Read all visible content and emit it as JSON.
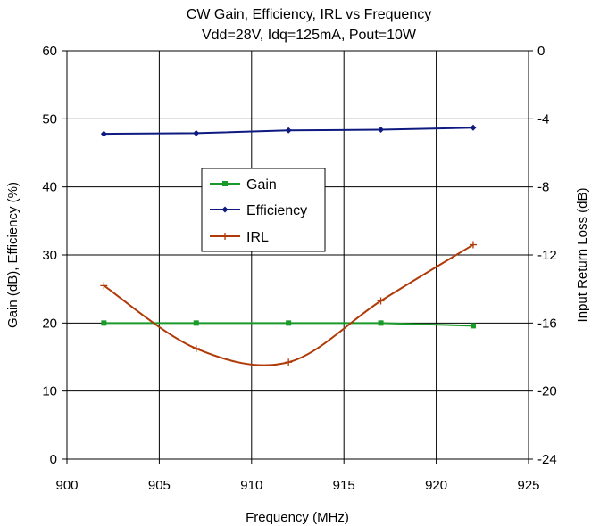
{
  "chart_data": {
    "type": "line",
    "title": "CW Gain, Efficiency, IRL vs Frequency",
    "subtitle": "Vdd=28V, Idq=125mA, Pout=10W",
    "xlabel": "Frequency (MHz)",
    "ylabel": "Gain (dB), Efficiency (%)",
    "y2label": "Input Return Loss (dB)",
    "xlim": [
      900,
      925
    ],
    "ylim": [
      0,
      60
    ],
    "y2lim": [
      -24,
      0
    ],
    "xticks": [
      "900",
      "905",
      "910",
      "915",
      "920",
      "925"
    ],
    "yticks": [
      "0",
      "10",
      "20",
      "30",
      "40",
      "50",
      "60"
    ],
    "y2ticks": [
      "-24",
      "-20",
      "-16",
      "-12",
      "-8",
      "-4",
      "0"
    ],
    "grid": true,
    "legend_position": "center",
    "series": [
      {
        "name": "Gain",
        "axis": "left",
        "color": "#1a9a2a",
        "marker": "square",
        "smooth": false,
        "x": [
          902,
          907,
          912,
          917,
          922
        ],
        "y": [
          20.0,
          20.0,
          20.0,
          20.0,
          19.6
        ]
      },
      {
        "name": "Efficiency",
        "axis": "left",
        "color": "#0f1a80",
        "marker": "diamond",
        "smooth": false,
        "x": [
          902,
          907,
          912,
          917,
          922
        ],
        "y": [
          47.8,
          47.9,
          48.3,
          48.4,
          48.7
        ]
      },
      {
        "name": "IRL",
        "axis": "right",
        "color": "#b03a08",
        "marker": "plus",
        "smooth": true,
        "x": [
          902,
          907,
          912,
          917,
          922
        ],
        "y": [
          -13.8,
          -17.5,
          -18.3,
          -14.7,
          -11.4
        ]
      }
    ]
  }
}
